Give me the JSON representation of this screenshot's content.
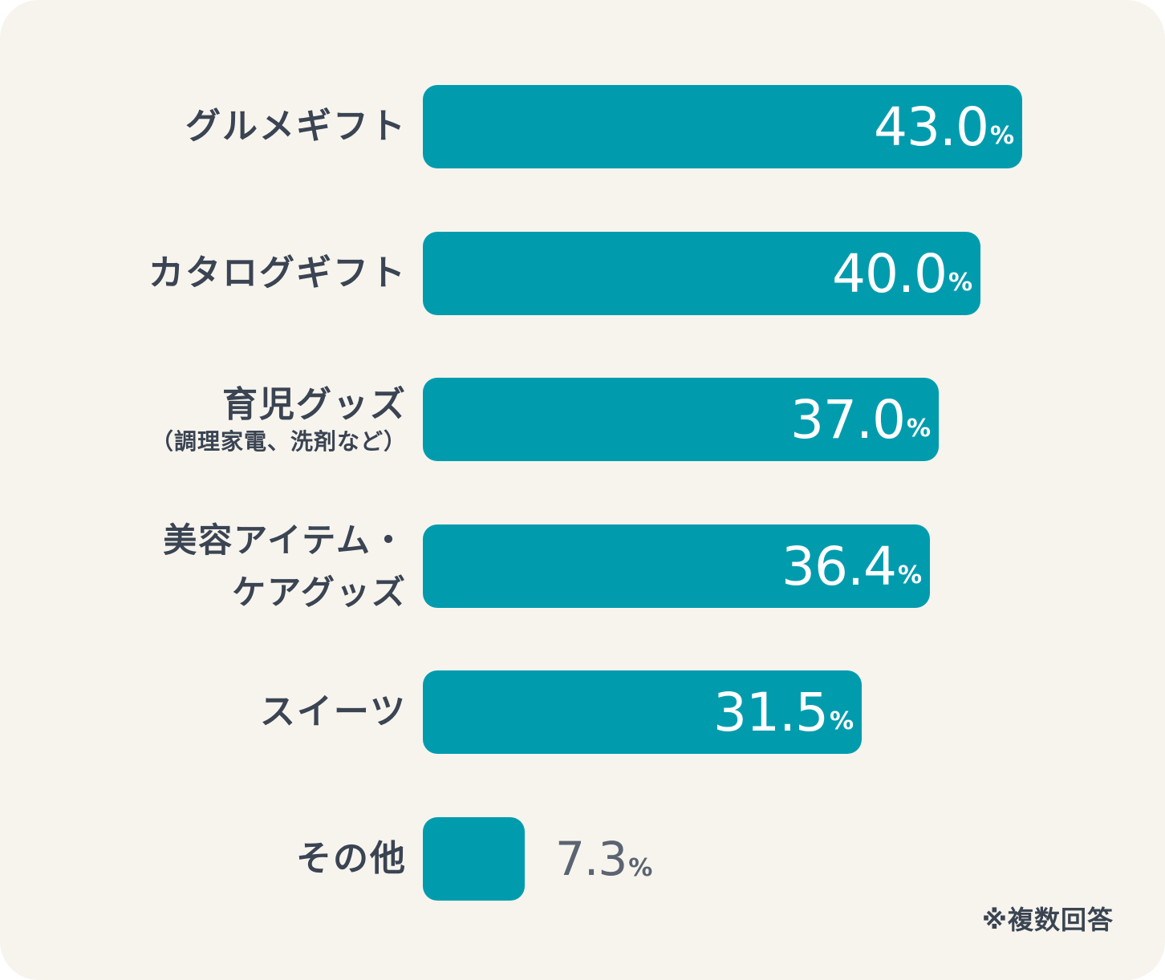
{
  "chart_data": {
    "type": "bar",
    "orientation": "horizontal",
    "categories": [
      {
        "label": "グルメギフト",
        "sub": ""
      },
      {
        "label": "カタログギフト",
        "sub": ""
      },
      {
        "label": "育児グッズ",
        "sub": "（調理家電、洗剤など）"
      },
      {
        "label": "美容アイテム・\nケアグッズ",
        "sub": ""
      },
      {
        "label": "スイーツ",
        "sub": ""
      },
      {
        "label": "その他",
        "sub": ""
      }
    ],
    "values": [
      43.0,
      40.0,
      37.0,
      36.4,
      31.5,
      7.3
    ],
    "value_labels": [
      "43.0",
      "40.0",
      "37.0",
      "36.4",
      "31.5",
      "7.3"
    ],
    "unit": "%",
    "grid": false,
    "legend": "none"
  },
  "colors": {
    "bar": "#009cae",
    "background": "#f7f4ee",
    "label_text": "#3a4452",
    "value_inside": "#ffffff",
    "value_outside": "#5b6470"
  },
  "footnote": "※複数回答"
}
